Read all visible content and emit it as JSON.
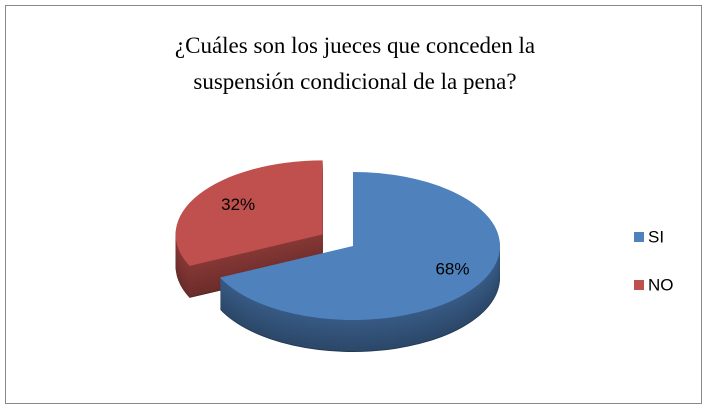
{
  "chart_data": {
    "type": "pie",
    "title": "¿Cuáles son los jueces que conceden la suspensión condicional de la pena?",
    "categories": [
      "SI",
      "NO"
    ],
    "values": [
      68,
      32
    ],
    "value_labels": [
      "68%",
      "32%"
    ],
    "colors": [
      "#4f81bd",
      "#c0504d"
    ],
    "three_d": true,
    "legend": "right"
  }
}
